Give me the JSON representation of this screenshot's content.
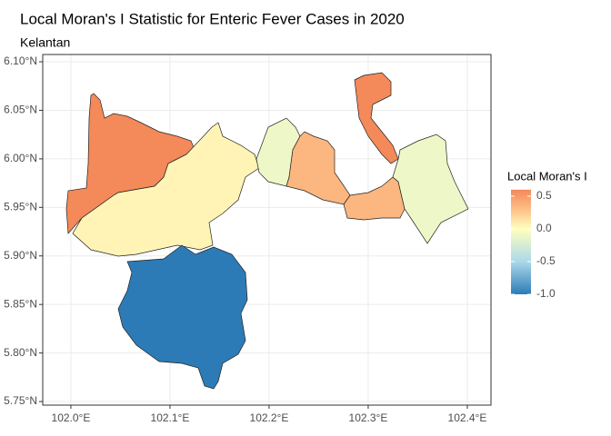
{
  "chart_data": {
    "type": "choropleth",
    "title": "Local Moran's I Statistic for Enteric Fever Cases in 2020",
    "subtitle": "Kelantan",
    "legend_title": "Local Moran's I",
    "values": [
      0.6,
      0.05,
      -1.0,
      -0.1,
      0.35,
      0.6,
      0.35,
      -0.1
    ],
    "xlim": [
      101.9716,
      102.4239
    ],
    "ylim": [
      5.7463,
      6.1075
    ],
    "xticks": [
      {
        "value": 102.0,
        "label": "102.0°E"
      },
      {
        "value": 102.1,
        "label": "102.1°E"
      },
      {
        "value": 102.2,
        "label": "102.2°E"
      },
      {
        "value": 102.3,
        "label": "102.3°E"
      },
      {
        "value": 102.4,
        "label": "102.4°E"
      }
    ],
    "yticks": [
      {
        "value": 5.75,
        "label": "5.75°N"
      },
      {
        "value": 5.8,
        "label": "5.80°N"
      },
      {
        "value": 5.85,
        "label": "5.85°N"
      },
      {
        "value": 5.9,
        "label": "5.90°N"
      },
      {
        "value": 5.95,
        "label": "5.95°N"
      },
      {
        "value": 6.0,
        "label": "6.00°N"
      },
      {
        "value": 6.05,
        "label": "6.05°N"
      },
      {
        "value": 6.1,
        "label": "6.10°N"
      }
    ],
    "colorbar_lim": [
      -1.0,
      0.6
    ],
    "colorbar_ticks": [
      {
        "value": -1,
        "label": "-1.0"
      },
      -0.5,
      {
        "value": 0,
        "label": "0.0"
      },
      0.5
    ],
    "color_stops": [
      -1,
      -0.5,
      0,
      0.3,
      0.6
    ],
    "colors": [
      "#2c7bb6",
      "#abd9e9",
      "#ffffbf",
      "#fdbf86",
      "#f4895a"
    ],
    "grid": true
  }
}
